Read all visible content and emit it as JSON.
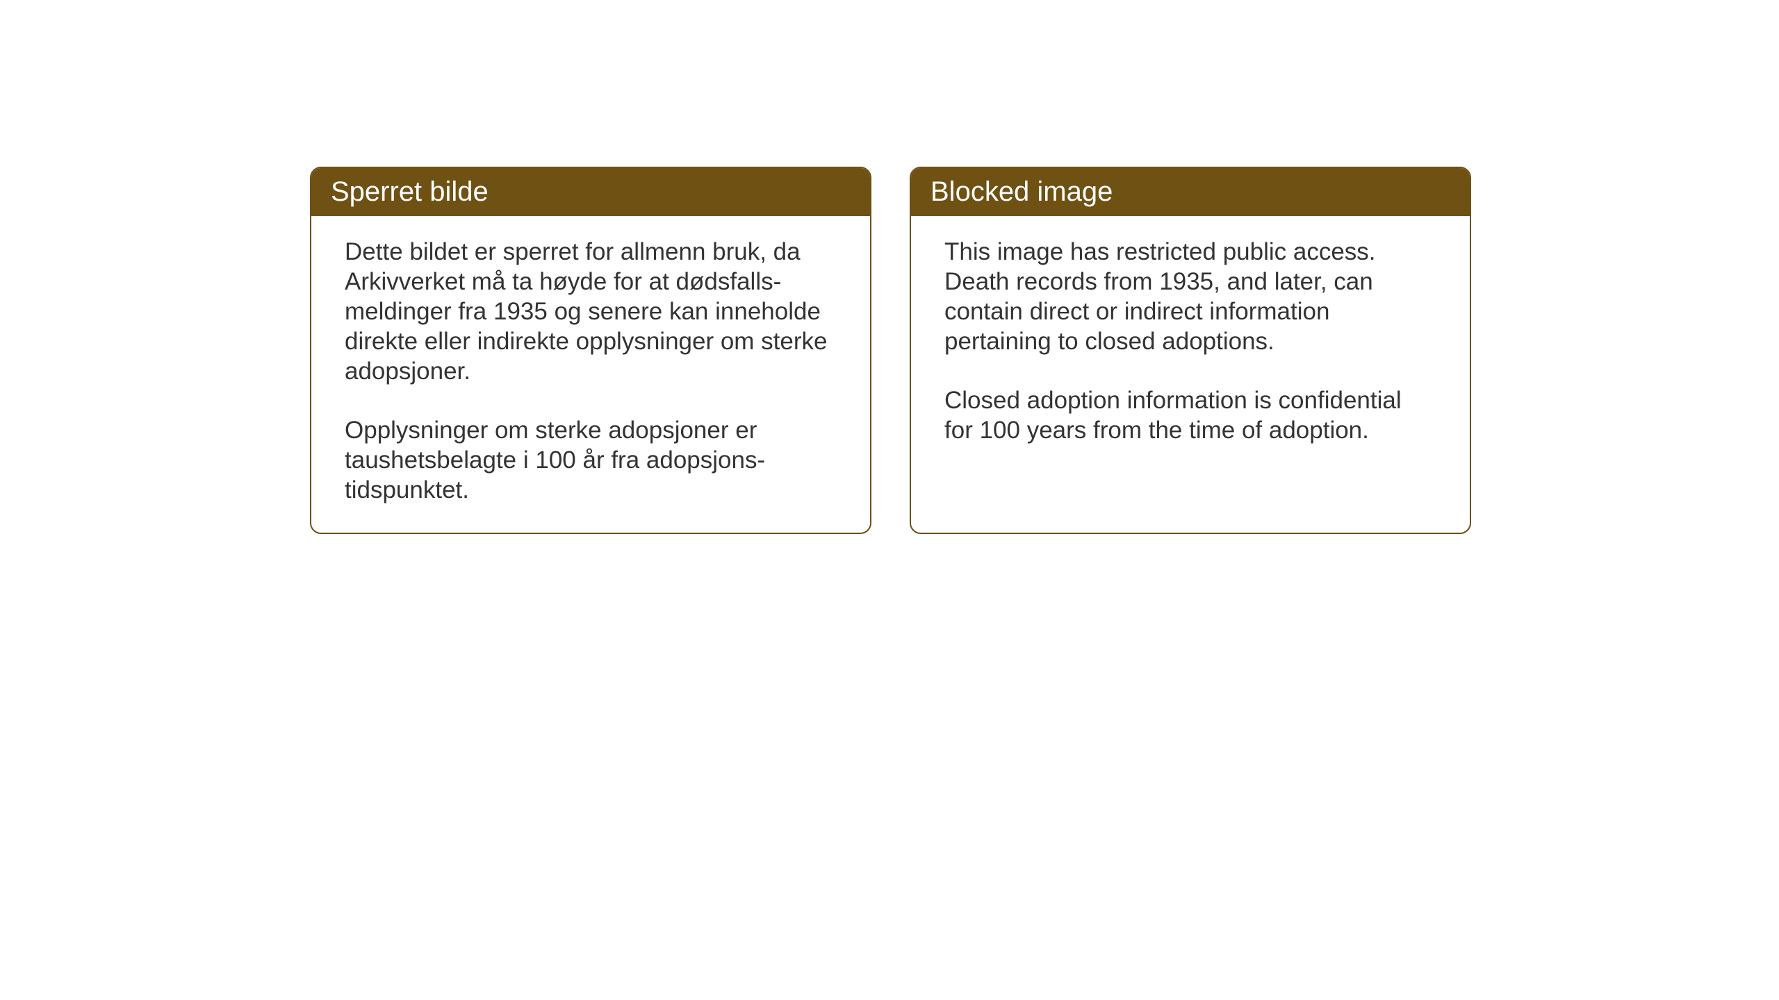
{
  "cards": [
    {
      "title": "Sperret bilde",
      "paragraph1": "Dette bildet er sperret for allmenn bruk, da Arkivverket må ta høyde for at dødsfalls-meldinger fra 1935 og senere kan inneholde direkte eller indirekte opplysninger om sterke adopsjoner.",
      "paragraph2": "Opplysninger om sterke adopsjoner er taushetsbelagte i 100 år fra adopsjons-tidspunktet."
    },
    {
      "title": "Blocked image",
      "paragraph1": "This image has restricted public access. Death records from 1935, and later, can contain direct or indirect information pertaining to closed adoptions.",
      "paragraph2": "Closed adoption information is confidential for 100 years from the time of adoption."
    }
  ],
  "styling": {
    "header_background_color": "#6e5113",
    "header_text_color": "#ffffff",
    "border_color": "#6e5113",
    "body_text_color": "#333333",
    "page_background_color": "#ffffff",
    "card_background_color": "#ffffff",
    "title_fontsize": 40,
    "body_fontsize": 35,
    "border_radius": 16,
    "border_width": 2
  }
}
